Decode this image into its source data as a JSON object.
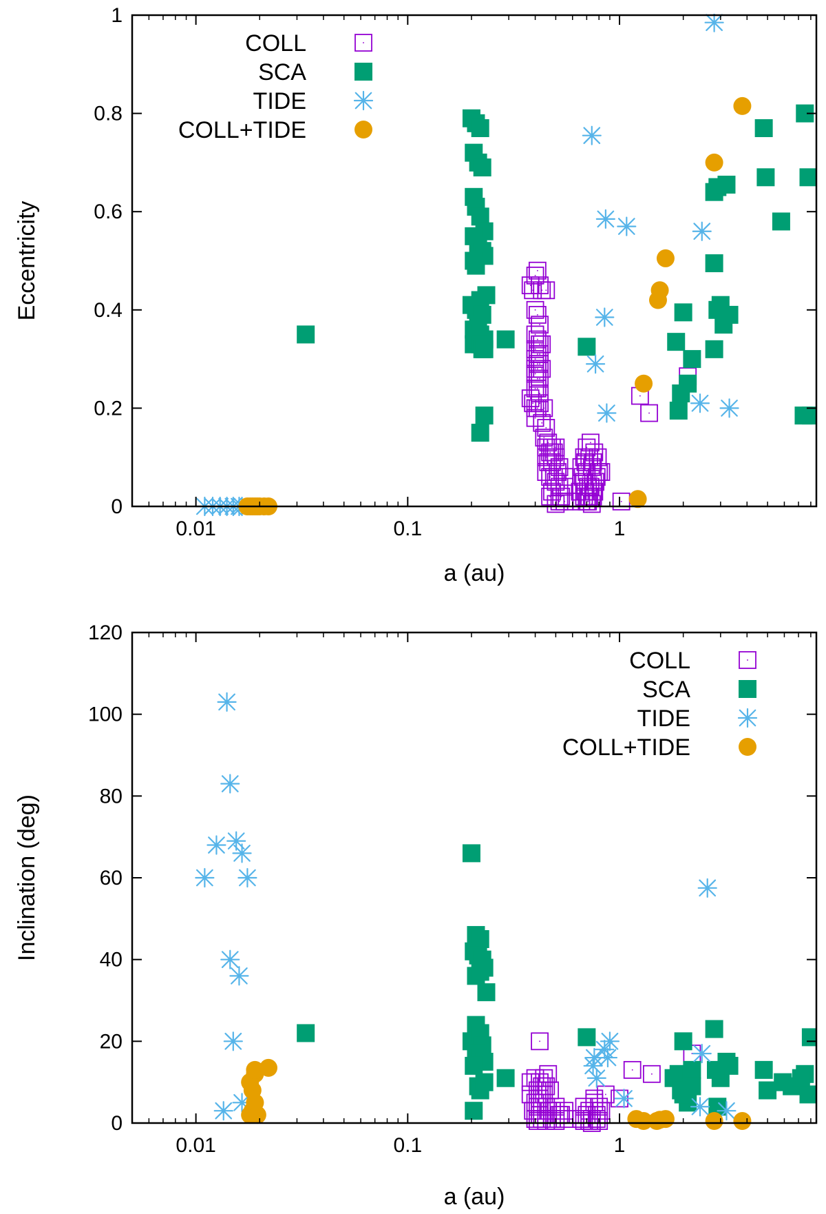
{
  "colors": {
    "COLL": "#9400d3",
    "SCA": "#009e73",
    "TIDE": "#56b4e9",
    "COLL+TIDE": "#e69f00"
  },
  "chart_data": [
    {
      "type": "scatter",
      "id": "top",
      "xlabel": "a (au)",
      "ylabel": "Eccentricity",
      "xscale": "log",
      "xlim": [
        0.005,
        8.5
      ],
      "ylim": [
        0,
        1
      ],
      "xticks": [
        0.01,
        0.1,
        1
      ],
      "xtick_labels": [
        "0.01",
        "0.1",
        "1"
      ],
      "yticks": [
        0,
        0.2,
        0.4,
        0.6,
        0.8,
        1
      ],
      "ytick_labels": [
        "0",
        "0.2",
        "0.4",
        "0.6",
        "0.8",
        "1"
      ],
      "legend": {
        "position": "top-left",
        "entries": [
          {
            "label": "COLL",
            "key": "COLL"
          },
          {
            "label": "SCA",
            "key": "SCA"
          },
          {
            "label": "TIDE",
            "key": "TIDE"
          },
          {
            "label": "COLL+TIDE",
            "key": "COLL+TIDE"
          }
        ]
      },
      "series": [
        {
          "name": "COLL",
          "marker": "open-square",
          "x": [
            0.38,
            0.39,
            0.4,
            0.41,
            0.42,
            0.43,
            0.4,
            0.41,
            0.42,
            0.45,
            0.4,
            0.41,
            0.42,
            0.43,
            0.4,
            0.41,
            0.42,
            0.4,
            0.41,
            0.42,
            0.4,
            0.41,
            0.42,
            0.4,
            0.41,
            0.42,
            0.4,
            0.41,
            0.43,
            0.38,
            0.39,
            0.4,
            0.41,
            0.42,
            0.44,
            0.4,
            0.43,
            0.45,
            0.44,
            0.46,
            0.48,
            0.45,
            0.47,
            0.49,
            0.5,
            0.45,
            0.46,
            0.48,
            0.5,
            0.52,
            0.45,
            0.47,
            0.49,
            0.51,
            0.55,
            0.5,
            0.52,
            0.55,
            0.48,
            0.53,
            0.47,
            0.52,
            0.5,
            0.55,
            0.68,
            0.7,
            0.73,
            0.76,
            0.79,
            0.66,
            0.69,
            0.72,
            0.75,
            0.8,
            0.67,
            0.7,
            0.74,
            0.78,
            0.82,
            0.68,
            0.71,
            0.75,
            0.65,
            0.69,
            0.73,
            0.77,
            0.68,
            0.72,
            0.76,
            0.7,
            0.74,
            0.66,
            0.71,
            0.75,
            1.02,
            1.25,
            1.38,
            2.1
          ],
          "y": [
            0.45,
            0.44,
            0.47,
            0.48,
            0.45,
            0.44,
            0.4,
            0.39,
            0.37,
            0.44,
            0.35,
            0.34,
            0.33,
            0.33,
            0.3,
            0.29,
            0.29,
            0.27,
            0.26,
            0.26,
            0.24,
            0.24,
            0.23,
            0.32,
            0.31,
            0.31,
            0.28,
            0.28,
            0.28,
            0.22,
            0.21,
            0.2,
            0.2,
            0.21,
            0.2,
            0.18,
            0.17,
            0.16,
            0.14,
            0.13,
            0.12,
            0.12,
            0.11,
            0.11,
            0.12,
            0.1,
            0.09,
            0.09,
            0.1,
            0.08,
            0.07,
            0.06,
            0.06,
            0.07,
            0.06,
            0.05,
            0.04,
            0.04,
            0.03,
            0.02,
            0.02,
            0.01,
            0.005,
            0.01,
            0.1,
            0.12,
            0.13,
            0.11,
            0.1,
            0.08,
            0.09,
            0.1,
            0.09,
            0.07,
            0.06,
            0.07,
            0.08,
            0.06,
            0.07,
            0.05,
            0.04,
            0.05,
            0.03,
            0.03,
            0.04,
            0.05,
            0.02,
            0.02,
            0.03,
            0.01,
            0.005,
            0.01,
            0.01,
            0.02,
            0.01,
            0.225,
            0.19,
            0.265
          ]
        },
        {
          "name": "SCA",
          "marker": "filled-square",
          "x": [
            0.033,
            0.2,
            0.21,
            0.22,
            0.205,
            0.215,
            0.225,
            0.205,
            0.21,
            0.22,
            0.23,
            0.205,
            0.215,
            0.225,
            0.23,
            0.205,
            0.21,
            0.22,
            0.235,
            0.2,
            0.21,
            0.225,
            0.205,
            0.215,
            0.22,
            0.23,
            0.205,
            0.21,
            0.22,
            0.225,
            0.23,
            0.22,
            0.23,
            0.29,
            0.7,
            2.0,
            1.85,
            2.2,
            2.1,
            1.9,
            1.95,
            2.8,
            3.0,
            3.3,
            2.8,
            2.9,
            3.2,
            2.8,
            2.9,
            3.1,
            4.8,
            4.9,
            5.8,
            7.5,
            7.8,
            8.0,
            7.4
          ],
          "y": [
            0.35,
            0.79,
            0.78,
            0.77,
            0.72,
            0.7,
            0.69,
            0.63,
            0.61,
            0.59,
            0.56,
            0.55,
            0.53,
            0.52,
            0.51,
            0.5,
            0.49,
            0.42,
            0.43,
            0.41,
            0.4,
            0.39,
            0.36,
            0.37,
            0.35,
            0.34,
            0.33,
            0.34,
            0.33,
            0.32,
            0.32,
            0.15,
            0.185,
            0.34,
            0.325,
            0.395,
            0.335,
            0.3,
            0.25,
            0.195,
            0.23,
            0.495,
            0.41,
            0.39,
            0.64,
            0.65,
            0.655,
            0.32,
            0.4,
            0.37,
            0.77,
            0.67,
            0.58,
            0.8,
            0.67,
            0.185,
            0.185
          ]
        },
        {
          "name": "TIDE",
          "marker": "asterisk",
          "x": [
            0.011,
            0.012,
            0.013,
            0.014,
            0.015,
            0.016,
            0.0165,
            0.74,
            0.77,
            0.86,
            0.85,
            0.87,
            1.08,
            2.45,
            2.4,
            2.8,
            3.3
          ],
          "y": [
            0,
            0,
            0,
            0,
            0,
            0,
            0,
            0.755,
            0.29,
            0.585,
            0.385,
            0.19,
            0.57,
            0.56,
            0.21,
            0.985,
            0.2
          ]
        },
        {
          "name": "COLL+TIDE",
          "marker": "filled-circle",
          "x": [
            0.0175,
            0.018,
            0.0185,
            0.019,
            0.0195,
            0.02,
            0.021,
            0.022,
            1.22,
            1.3,
            1.52,
            1.55,
            1.65,
            2.8,
            3.8
          ],
          "y": [
            0,
            0,
            0,
            0,
            0,
            0,
            0,
            0,
            0.015,
            0.25,
            0.42,
            0.44,
            0.505,
            0.7,
            0.815
          ]
        }
      ]
    },
    {
      "type": "scatter",
      "id": "bottom",
      "xlabel": "a (au)",
      "ylabel": "Inclination (deg)",
      "xscale": "log",
      "xlim": [
        0.005,
        8.5
      ],
      "ylim": [
        0,
        120
      ],
      "xticks": [
        0.01,
        0.1,
        1
      ],
      "xtick_labels": [
        "0.01",
        "0.1",
        "1"
      ],
      "yticks": [
        0,
        20,
        40,
        60,
        80,
        100,
        120
      ],
      "ytick_labels": [
        "0",
        "20",
        "40",
        "60",
        "80",
        "100",
        "120"
      ],
      "legend": {
        "position": "top-right",
        "entries": [
          {
            "label": "COLL",
            "key": "COLL"
          },
          {
            "label": "SCA",
            "key": "SCA"
          },
          {
            "label": "TIDE",
            "key": "TIDE"
          },
          {
            "label": "COLL+TIDE",
            "key": "COLL+TIDE"
          }
        ]
      },
      "series": [
        {
          "name": "COLL",
          "marker": "open-square",
          "x": [
            0.42,
            0.38,
            0.4,
            0.42,
            0.44,
            0.46,
            0.38,
            0.41,
            0.43,
            0.45,
            0.4,
            0.42,
            0.44,
            0.47,
            0.39,
            0.41,
            0.43,
            0.45,
            0.48,
            0.4,
            0.42,
            0.46,
            0.5,
            0.52,
            0.55,
            0.48,
            0.53,
            0.5,
            0.55,
            0.45,
            0.43,
            0.41,
            0.68,
            0.72,
            0.76,
            0.8,
            0.7,
            0.74,
            0.78,
            0.82,
            0.66,
            0.72,
            0.78,
            0.68,
            0.74,
            0.8,
            0.76,
            0.86,
            1.0,
            1.15,
            1.42,
            2.2
          ],
          "y": [
            20,
            10,
            11,
            10,
            11,
            12,
            7,
            8,
            9,
            9,
            5,
            6,
            7,
            8,
            3,
            4,
            5,
            4,
            3,
            1,
            2,
            3,
            4,
            2,
            3,
            1,
            2,
            0.5,
            1,
            0.5,
            1,
            0.5,
            4,
            3,
            5,
            4,
            2,
            1,
            2,
            3,
            1,
            0.5,
            1,
            0.5,
            0,
            0.5,
            6,
            7,
            6,
            13,
            12,
            17
          ]
        },
        {
          "name": "SCA",
          "marker": "filled-square",
          "x": [
            0.033,
            0.2,
            0.21,
            0.22,
            0.23,
            0.205,
            0.215,
            0.225,
            0.21,
            0.22,
            0.235,
            0.2,
            0.21,
            0.22,
            0.225,
            0.21,
            0.22,
            0.23,
            0.205,
            0.215,
            0.22,
            0.205,
            0.23,
            0.29,
            0.7,
            2.0,
            1.9,
            2.2,
            2.1,
            1.8,
            1.95,
            2.1,
            2.0,
            2.2,
            2.8,
            3.0,
            3.3,
            2.85,
            3.2,
            2.9,
            4.8,
            5.0,
            5.9,
            6.5,
            7.5,
            7.8,
            8.0,
            7.2
          ],
          "y": [
            22,
            66,
            46,
            45,
            38,
            42,
            41,
            40,
            36,
            37,
            32,
            20,
            24,
            22,
            19,
            17,
            16,
            15,
            14,
            9,
            8,
            3,
            10,
            11,
            21,
            20,
            12,
            13,
            10,
            11,
            8,
            5,
            7,
            9,
            23,
            11,
            14,
            13,
            15,
            4,
            13,
            8,
            10,
            9,
            12,
            7,
            21,
            11
          ]
        },
        {
          "name": "TIDE",
          "marker": "asterisk",
          "x": [
            0.011,
            0.0125,
            0.014,
            0.0145,
            0.0155,
            0.0165,
            0.0175,
            0.0145,
            0.016,
            0.015,
            0.0135,
            0.0165,
            0.75,
            0.78,
            0.76,
            0.9,
            0.85,
            0.88,
            1.05,
            2.45,
            2.6,
            2.4,
            3.2
          ],
          "y": [
            60,
            68,
            103,
            83,
            69,
            66,
            60,
            40,
            36,
            20,
            3,
            5,
            14,
            11,
            16,
            20,
            18,
            16,
            6,
            17,
            57.5,
            4,
            3
          ]
        },
        {
          "name": "COLL+TIDE",
          "marker": "filled-circle",
          "x": [
            0.018,
            0.0185,
            0.019,
            0.0185,
            0.019,
            0.018,
            0.0195,
            0.019,
            0.022,
            1.2,
            1.3,
            1.5,
            1.55,
            1.65,
            2.8,
            3.8
          ],
          "y": [
            2,
            3,
            5,
            8,
            12,
            10,
            2,
            13,
            13.5,
            1,
            0.5,
            0.5,
            0.8,
            1,
            0.5,
            0.5
          ]
        }
      ]
    }
  ]
}
